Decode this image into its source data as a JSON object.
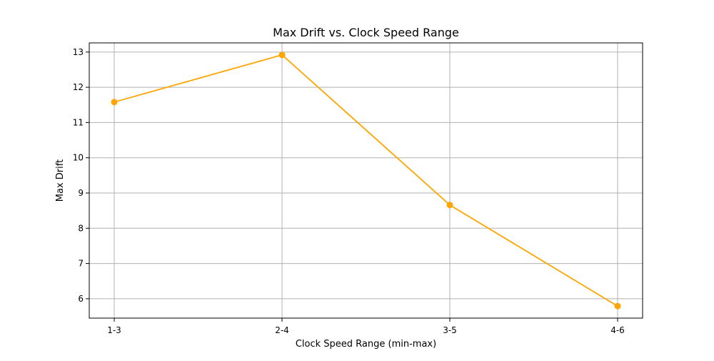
{
  "chart_data": {
    "type": "line",
    "title": "Max Drift vs. Clock Speed Range",
    "xlabel": "Clock Speed Range (min-max)",
    "ylabel": "Max Drift",
    "categories": [
      "1-3",
      "2-4",
      "3-5",
      "4-6"
    ],
    "series": [
      {
        "values": [
          11.58,
          12.92,
          8.66,
          5.79
        ],
        "color": "#ffa500",
        "marker": "circle"
      }
    ],
    "ylim": [
      5.45,
      13.26
    ],
    "yticks": [
      6,
      7,
      8,
      9,
      10,
      11,
      12,
      13
    ],
    "grid": true
  }
}
